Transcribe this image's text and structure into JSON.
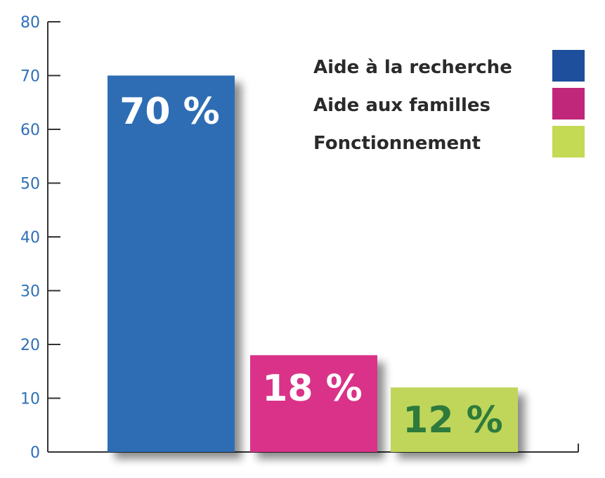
{
  "chart_data": {
    "type": "bar",
    "categories": [
      "Aide à la recherche",
      "Aide aux familles",
      "Fonctionnement"
    ],
    "values": [
      70,
      18,
      12
    ],
    "value_labels": [
      "70 %",
      "18 %",
      "12 %"
    ],
    "colors": [
      "#2e6db4",
      "#da3189",
      "#bfd65a"
    ],
    "label_colors": [
      "#ffffff",
      "#ffffff",
      "#2e7a3c"
    ],
    "legend_colors": [
      "#1e4f9c",
      "#c0267a",
      "#c4da54"
    ],
    "title": "",
    "xlabel": "",
    "ylabel": "",
    "ylim": [
      0,
      80
    ],
    "yticks": [
      0,
      10,
      20,
      30,
      40,
      50,
      60,
      70,
      80
    ],
    "grid": false,
    "legend_position": "top-right",
    "axis_color": "#333333",
    "tick_label_color": "#2f6fb6"
  }
}
